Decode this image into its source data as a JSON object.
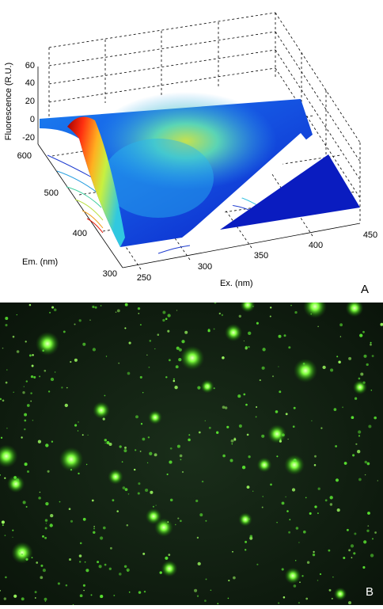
{
  "chart_data": [
    {
      "type": "surface",
      "panel_label": "A",
      "zlabel": "Fluorescence (R.U.)",
      "ylabel": "Em. (nm)",
      "xlabel": "Ex. (nm)",
      "z_ticks": [
        "60",
        "40",
        "20",
        "0",
        "-20"
      ],
      "y_ticks": [
        "600",
        "500",
        "400",
        "300"
      ],
      "x_ticks": [
        "250",
        "300",
        "350",
        "400",
        "450"
      ],
      "xlim": [
        240,
        450
      ],
      "ylim": [
        300,
        600
      ],
      "zlim": [
        -20,
        60
      ],
      "grid": true,
      "colormap": "jet",
      "peaks": [
        {
          "ex": 272,
          "em": 560,
          "fluorescence": 52
        },
        {
          "ex": 315,
          "em": 500,
          "fluorescence": 20
        }
      ],
      "contours_projected": true
    },
    {
      "type": "image",
      "panel_label": "B",
      "colors": {
        "background": "#0c1a0c",
        "spot": "#7dff3c"
      }
    }
  ]
}
